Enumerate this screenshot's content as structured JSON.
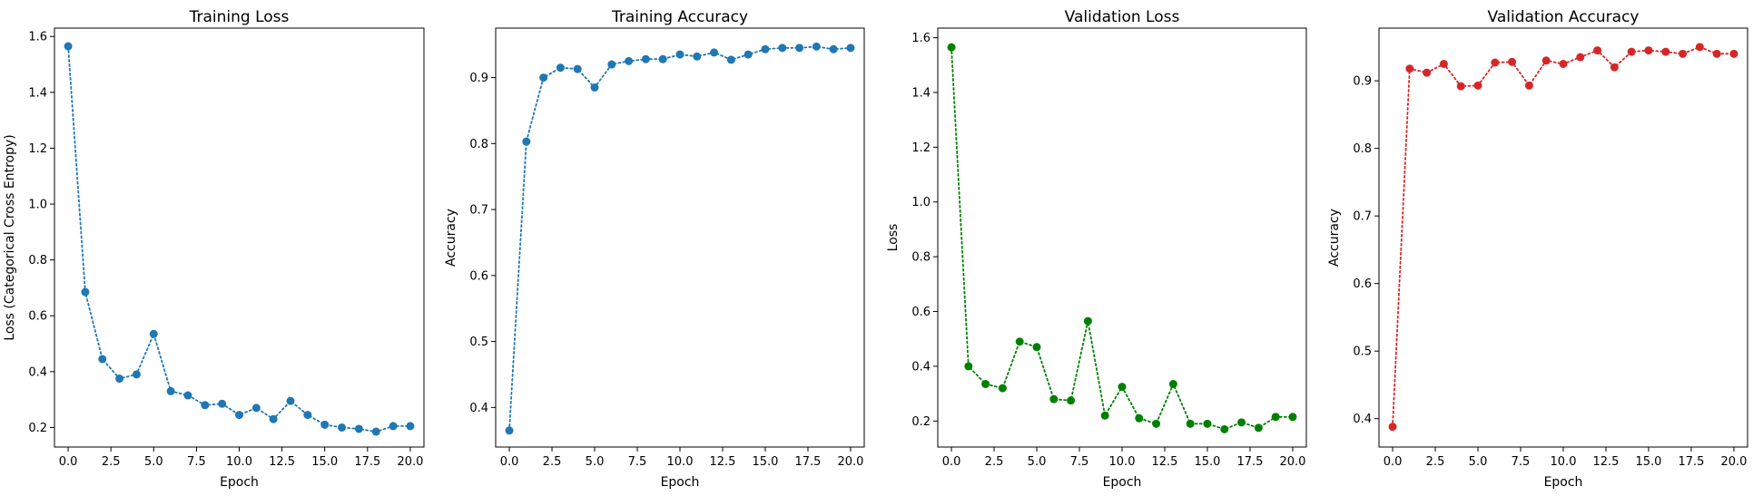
{
  "chart_data": [
    {
      "type": "line",
      "title": "Training Loss",
      "xlabel": "Epoch",
      "ylabel": "Loss (Categorical Cross Entropy)",
      "color": "#1f77b4",
      "line_style": "dotted",
      "marker": "circle",
      "grid": false,
      "xlim": [
        -0.8,
        20.8
      ],
      "ylim": [
        0.13,
        1.63
      ],
      "xticks": [
        "0.0",
        "2.5",
        "5.0",
        "7.5",
        "10.0",
        "12.5",
        "15.0",
        "17.5",
        "20.0"
      ],
      "yticks": [
        "0.2",
        "0.4",
        "0.6",
        "0.8",
        "1.0",
        "1.2",
        "1.4",
        "1.6"
      ],
      "x": [
        0,
        1,
        2,
        3,
        4,
        5,
        6,
        7,
        8,
        9,
        10,
        11,
        12,
        13,
        14,
        15,
        16,
        17,
        18,
        19,
        20
      ],
      "y": [
        1.565,
        0.685,
        0.445,
        0.375,
        0.39,
        0.535,
        0.33,
        0.315,
        0.28,
        0.285,
        0.245,
        0.27,
        0.23,
        0.295,
        0.245,
        0.21,
        0.2,
        0.195,
        0.185,
        0.205,
        0.205
      ]
    },
    {
      "type": "line",
      "title": "Training Accuracy",
      "xlabel": "Epoch",
      "ylabel": "Accuracy",
      "color": "#1f77b4",
      "line_style": "dotted",
      "marker": "circle",
      "grid": false,
      "xlim": [
        -0.8,
        20.8
      ],
      "ylim": [
        0.34,
        0.975
      ],
      "xticks": [
        "0.0",
        "2.5",
        "5.0",
        "7.5",
        "10.0",
        "12.5",
        "15.0",
        "17.5",
        "20.0"
      ],
      "yticks": [
        "0.4",
        "0.5",
        "0.6",
        "0.7",
        "0.8",
        "0.9"
      ],
      "x": [
        0,
        1,
        2,
        3,
        4,
        5,
        6,
        7,
        8,
        9,
        10,
        11,
        12,
        13,
        14,
        15,
        16,
        17,
        18,
        19,
        20
      ],
      "y": [
        0.365,
        0.803,
        0.9,
        0.915,
        0.913,
        0.885,
        0.92,
        0.925,
        0.928,
        0.928,
        0.935,
        0.932,
        0.938,
        0.927,
        0.935,
        0.943,
        0.945,
        0.945,
        0.947,
        0.943,
        0.945
      ]
    },
    {
      "type": "line",
      "title": "Validation Loss",
      "xlabel": "Epoch",
      "ylabel": "Loss",
      "color": "#008000",
      "line_style": "dotted",
      "marker": "circle",
      "grid": false,
      "xlim": [
        -0.8,
        20.8
      ],
      "ylim": [
        0.105,
        1.635
      ],
      "xticks": [
        "0.0",
        "2.5",
        "5.0",
        "7.5",
        "10.0",
        "12.5",
        "15.0",
        "17.5",
        "20.0"
      ],
      "yticks": [
        "0.2",
        "0.4",
        "0.6",
        "0.8",
        "1.0",
        "1.2",
        "1.4",
        "1.6"
      ],
      "x": [
        0,
        1,
        2,
        3,
        4,
        5,
        6,
        7,
        8,
        9,
        10,
        11,
        12,
        13,
        14,
        15,
        16,
        17,
        18,
        19,
        20
      ],
      "y": [
        1.565,
        0.4,
        0.335,
        0.32,
        0.49,
        0.47,
        0.28,
        0.275,
        0.565,
        0.22,
        0.325,
        0.21,
        0.19,
        0.335,
        0.19,
        0.19,
        0.17,
        0.195,
        0.175,
        0.215,
        0.215
      ]
    },
    {
      "type": "line",
      "title": "Validation Accuracy",
      "xlabel": "Epoch",
      "ylabel": "Accuracy",
      "color": "#d62728",
      "line_style": "dotted",
      "marker": "circle",
      "grid": false,
      "xlim": [
        -0.8,
        20.8
      ],
      "ylim": [
        0.358,
        0.978
      ],
      "xticks": [
        "0.0",
        "2.5",
        "5.0",
        "7.5",
        "10.0",
        "12.5",
        "15.0",
        "17.5",
        "20.0"
      ],
      "yticks": [
        "0.4",
        "0.5",
        "0.6",
        "0.7",
        "0.8",
        "0.9"
      ],
      "x": [
        0,
        1,
        2,
        3,
        4,
        5,
        6,
        7,
        8,
        9,
        10,
        11,
        12,
        13,
        14,
        15,
        16,
        17,
        18,
        19,
        20
      ],
      "y": [
        0.388,
        0.918,
        0.912,
        0.925,
        0.892,
        0.893,
        0.927,
        0.928,
        0.893,
        0.93,
        0.925,
        0.935,
        0.945,
        0.92,
        0.943,
        0.945,
        0.943,
        0.94,
        0.95,
        0.94,
        0.94
      ]
    }
  ]
}
